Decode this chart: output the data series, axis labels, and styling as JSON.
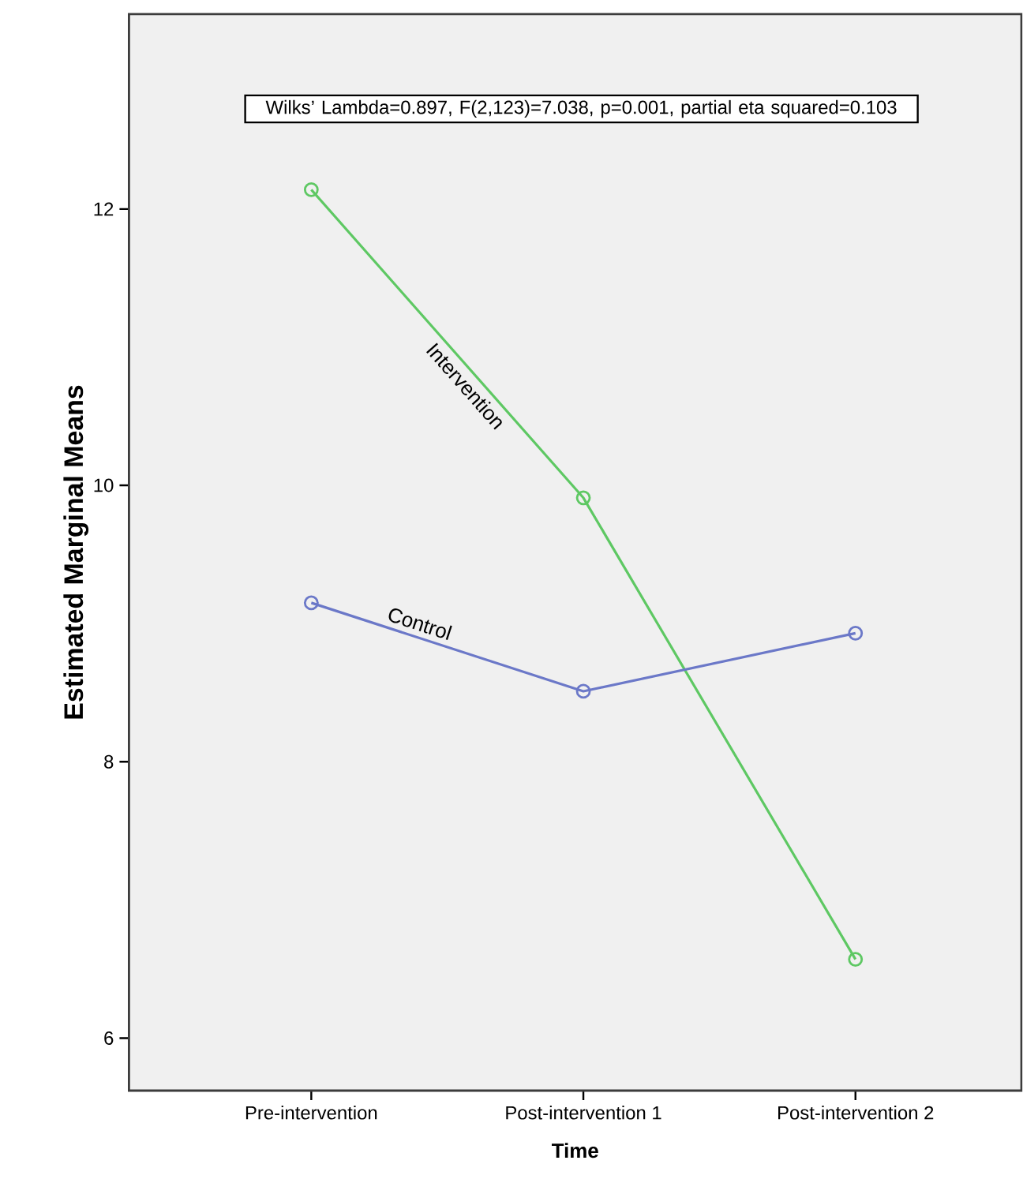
{
  "chart_data": {
    "type": "line",
    "xlabel": "Time",
    "ylabel": "Estimated Marginal Means",
    "categories": [
      "Pre-intervention",
      "Post-intervention 1",
      "Post-intervention 2"
    ],
    "series": [
      {
        "name": "Intervention",
        "color": "#5ec863",
        "values": [
          12.14,
          9.91,
          6.57
        ]
      },
      {
        "name": "Control",
        "color": "#6b78c8",
        "values": [
          9.15,
          8.51,
          8.93
        ]
      }
    ],
    "ylim": [
      5.62,
      13.41
    ],
    "yticks": [
      6,
      8,
      10,
      12
    ],
    "annotations": [
      "Wilks’ Lambda=0.897, F(2,123)=7.038, p=0.001, partial eta squared=0.103"
    ],
    "marker": "circle",
    "grid": false
  }
}
